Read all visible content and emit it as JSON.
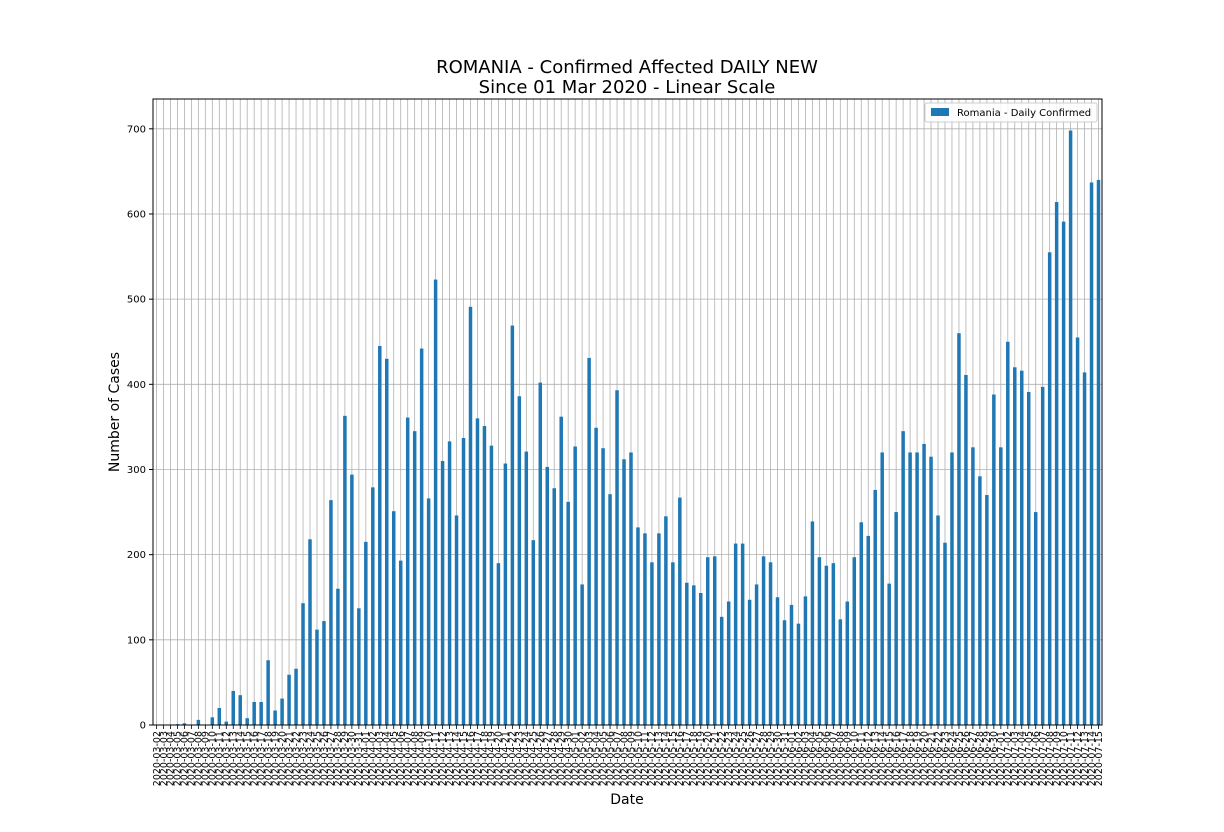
{
  "chart_data": {
    "type": "bar",
    "title": "ROMANIA - Confirmed Affected DAILY NEW",
    "subtitle": "Since 01 Mar 2020 - Linear Scale",
    "xlabel": "Date",
    "ylabel": "Number of Cases",
    "ylim": [
      0,
      735
    ],
    "yticks": [
      "0",
      "100",
      "200",
      "300",
      "400",
      "500",
      "600",
      "700"
    ],
    "grid": true,
    "legend_position": "top-right",
    "bar_color": "#1f77b4",
    "series": [
      {
        "name": "Romania - Daily Confirmed",
        "values": [
          0,
          0,
          0,
          1,
          2,
          0,
          6,
          0,
          9,
          20,
          4,
          40,
          35,
          8,
          27,
          27,
          76,
          17,
          31,
          59,
          66,
          143,
          218,
          112,
          122,
          264,
          160,
          363,
          294,
          137,
          215,
          279,
          445,
          430,
          251,
          193,
          361,
          345,
          442,
          266,
          523,
          310,
          333,
          246,
          337,
          491,
          360,
          351,
          328,
          190,
          307,
          469,
          386,
          321,
          217,
          402,
          303,
          278,
          362,
          262,
          327,
          165,
          431,
          349,
          325,
          271,
          393,
          312,
          320,
          232,
          225,
          191,
          225,
          245,
          191,
          267,
          167,
          164,
          155,
          197,
          198,
          127,
          145,
          213,
          213,
          147,
          165,
          198,
          191,
          150,
          123,
          141,
          119,
          151,
          239,
          197,
          187,
          190,
          124,
          145,
          197,
          238,
          222,
          276,
          320,
          166,
          250,
          345,
          320,
          320,
          330,
          315,
          246,
          214,
          320,
          460,
          411,
          326,
          292,
          270,
          388,
          326,
          450,
          420,
          416,
          391,
          250,
          397,
          555,
          614,
          591,
          698,
          455,
          414,
          637,
          640
        ]
      }
    ],
    "x_tick_labels": [
      "2020-03-02",
      "2020-03-03",
      "2020-03-04",
      "2020-03-05",
      "2020-03-06",
      "2020-03-07",
      "2020-03-08",
      "2020-03-09",
      "2020-03-10",
      "2020-03-11",
      "2020-03-12",
      "2020-03-13",
      "2020-03-14",
      "2020-03-15",
      "2020-03-16",
      "2020-03-17",
      "2020-03-18",
      "2020-03-19",
      "2020-03-20",
      "2020-03-21",
      "2020-03-22",
      "2020-03-23",
      "2020-03-24",
      "2020-03-25",
      "2020-03-26",
      "2020-03-27",
      "2020-03-28",
      "2020-03-29",
      "2020-03-30",
      "2020-03-31",
      "2020-04-01",
      "2020-04-02",
      "2020-04-03",
      "2020-04-04",
      "2020-04-05",
      "2020-04-06",
      "2020-04-07",
      "2020-04-08",
      "2020-04-09",
      "2020-04-10",
      "2020-04-11",
      "2020-04-12",
      "2020-04-13",
      "2020-04-14",
      "2020-04-15",
      "2020-04-16",
      "2020-04-17",
      "2020-04-18",
      "2020-04-19",
      "2020-04-20",
      "2020-04-21",
      "2020-04-22",
      "2020-04-23",
      "2020-04-24",
      "2020-04-25",
      "2020-04-26",
      "2020-04-27",
      "2020-04-28",
      "2020-04-29",
      "2020-04-30",
      "2020-05-01",
      "2020-05-02",
      "2020-05-03",
      "2020-05-04",
      "2020-05-05",
      "2020-05-06",
      "2020-05-07",
      "2020-05-08",
      "2020-05-09",
      "2020-05-10",
      "2020-05-11",
      "2020-05-12",
      "2020-05-13",
      "2020-05-14",
      "2020-05-15",
      "2020-05-16",
      "2020-05-17",
      "2020-05-18",
      "2020-05-19",
      "2020-05-20",
      "2020-05-21",
      "2020-05-22",
      "2020-05-23",
      "2020-05-24",
      "2020-05-25",
      "2020-05-26",
      "2020-05-27",
      "2020-05-28",
      "2020-05-29",
      "2020-05-30",
      "2020-05-31",
      "2020-06-01",
      "2020-06-02",
      "2020-06-03",
      "2020-06-04",
      "2020-06-05",
      "2020-06-06",
      "2020-06-07",
      "2020-06-08",
      "2020-06-09",
      "2020-06-10",
      "2020-06-11",
      "2020-06-12",
      "2020-06-13",
      "2020-06-14",
      "2020-06-15",
      "2020-06-16",
      "2020-06-17",
      "2020-06-18",
      "2020-06-19",
      "2020-06-20",
      "2020-06-21",
      "2020-06-22",
      "2020-06-23",
      "2020-06-24",
      "2020-06-25",
      "2020-06-26",
      "2020-06-27",
      "2020-06-28",
      "2020-06-29",
      "2020-06-30",
      "2020-07-01",
      "2020-07-02",
      "2020-07-03",
      "2020-07-04",
      "2020-07-05",
      "2020-07-06",
      "2020-07-07",
      "2020-07-08",
      "2020-07-09",
      "2020-07-10",
      "2020-07-11",
      "2020-07-12",
      "2020-07-13",
      "2020-07-14",
      "2020-07-15"
    ]
  }
}
